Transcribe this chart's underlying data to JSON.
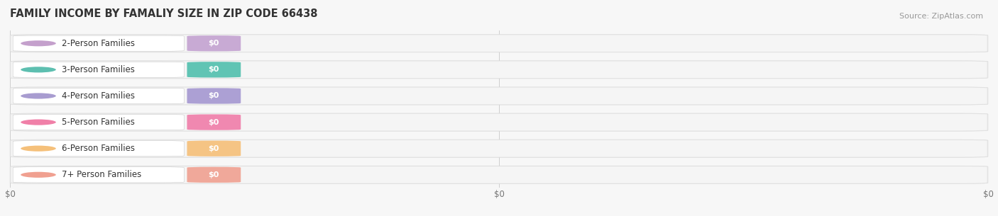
{
  "title": "FAMILY INCOME BY FAMALIY SIZE IN ZIP CODE 66438",
  "source": "Source: ZipAtlas.com",
  "categories": [
    "2-Person Families",
    "3-Person Families",
    "4-Person Families",
    "5-Person Families",
    "6-Person Families",
    "7+ Person Families"
  ],
  "values": [
    0,
    0,
    0,
    0,
    0,
    0
  ],
  "accent_colors": [
    "#c4a0cc",
    "#5dbfb0",
    "#a89cd0",
    "#f080a8",
    "#f5c07a",
    "#f0a090"
  ],
  "value_pill_colors": [
    "#c8aad4",
    "#60c4b4",
    "#aca0d4",
    "#f088b0",
    "#f5c484",
    "#f0a89a"
  ],
  "xtick_labels": [
    "$0",
    "$0",
    "$0"
  ],
  "bg_color": "#f7f7f7",
  "bar_bg_color": "#eeeeee",
  "bar_inner_color": "#ffffff",
  "label_bg_color": "#ffffff",
  "title_fontsize": 10.5,
  "source_fontsize": 8,
  "label_fontsize": 8.5,
  "value_fontsize": 8
}
